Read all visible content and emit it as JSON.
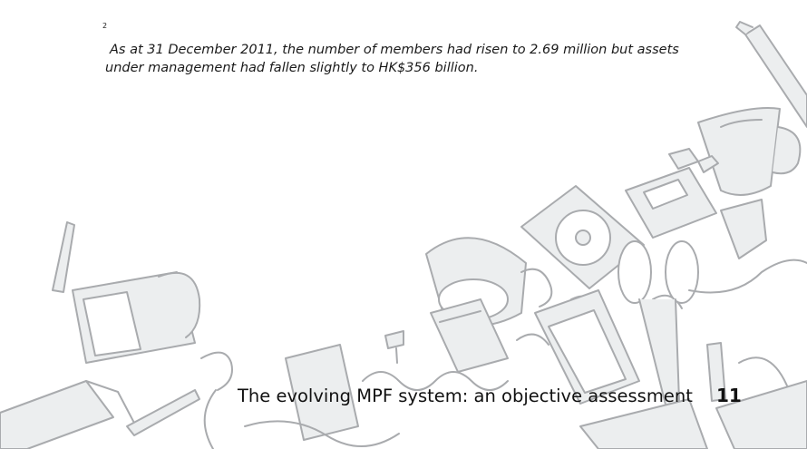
{
  "footnote": {
    "marker": "2",
    "line1": "As at 31 December 2011, the number of members had risen to 2.69 million but assets",
    "line2": "under management had fallen slightly to HK$356 billion."
  },
  "footer": {
    "title": "The evolving MPF system: an objective assessment",
    "page_number": "11"
  },
  "illustration": {
    "stroke_color": "#a9abae",
    "fill_color": "#eceeef"
  }
}
